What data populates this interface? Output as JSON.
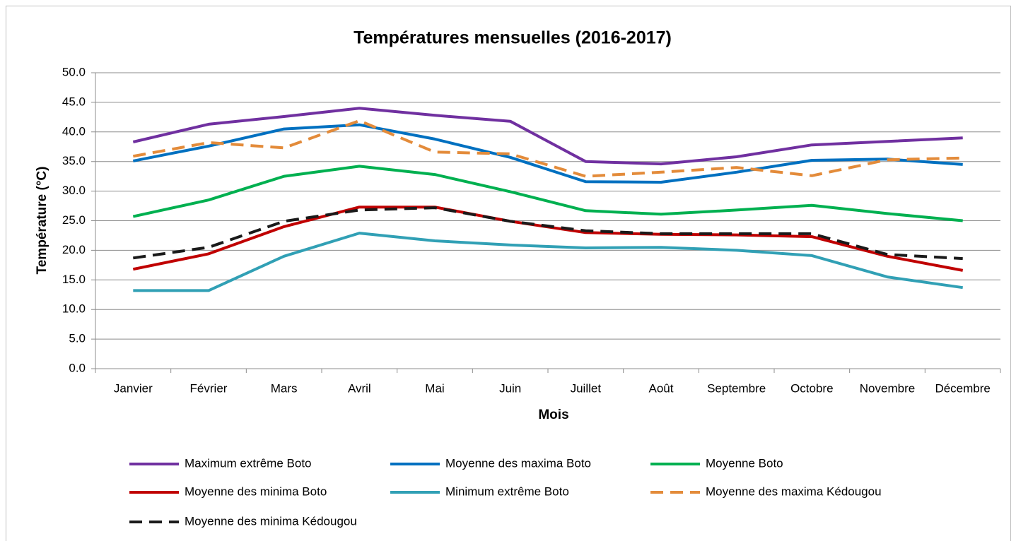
{
  "chart_data": {
    "type": "line",
    "title": "Températures mensuelles (2016-2017)",
    "x_label": "Mois",
    "y_label": "Température (°C)",
    "categories": [
      "Janvier",
      "Février",
      "Mars",
      "Avril",
      "Mai",
      "Juin",
      "Juillet",
      "Août",
      "Septembre",
      "Octobre",
      "Novembre",
      "Décembre"
    ],
    "ylim": [
      0,
      50
    ],
    "yticks": [
      {
        "value": 0,
        "label": "0.0"
      },
      {
        "value": 5,
        "label": "5.0"
      },
      {
        "value": 10,
        "label": "10.0"
      },
      {
        "value": 15,
        "label": "15.0"
      },
      {
        "value": 20,
        "label": "20.0"
      },
      {
        "value": 25,
        "label": "25.0"
      },
      {
        "value": 30,
        "label": "30.0"
      },
      {
        "value": 35,
        "label": "35.0"
      },
      {
        "value": 40,
        "label": "40.0"
      },
      {
        "value": 45,
        "label": "45.0"
      },
      {
        "value": 50,
        "label": "50.0"
      }
    ],
    "grid": true,
    "legend": "bottom",
    "series": [
      {
        "name": "Maximum extrême Boto",
        "color": "#7030a0",
        "dashed": false,
        "values": [
          38.3,
          41.3,
          42.6,
          44.0,
          42.8,
          41.8,
          35.0,
          34.6,
          35.8,
          37.8,
          38.4,
          39.0
        ]
      },
      {
        "name": "Moyenne des maxima Boto",
        "color": "#0070c0",
        "dashed": false,
        "values": [
          35.1,
          37.6,
          40.5,
          41.2,
          38.8,
          35.7,
          31.6,
          31.5,
          33.2,
          35.2,
          35.4,
          34.5
        ]
      },
      {
        "name": "Moyenne Boto",
        "color": "#00b050",
        "dashed": false,
        "values": [
          25.7,
          28.5,
          32.5,
          34.2,
          32.8,
          29.9,
          26.7,
          26.1,
          26.8,
          27.6,
          26.2,
          25.0
        ]
      },
      {
        "name": "Moyenne des minima Boto",
        "color": "#c00000",
        "dashed": false,
        "values": [
          16.8,
          19.4,
          24.0,
          27.3,
          27.3,
          24.9,
          23.0,
          22.7,
          22.6,
          22.3,
          19.0,
          16.6
        ]
      },
      {
        "name": "Minimum extrême Boto",
        "color": "#31a0b5",
        "dashed": false,
        "values": [
          13.2,
          13.2,
          19.0,
          22.9,
          21.6,
          20.9,
          20.4,
          20.5,
          20.0,
          19.1,
          15.5,
          13.7
        ]
      },
      {
        "name": "Moyenne des maxima Kédougou",
        "color": "#e38b3a",
        "dashed": true,
        "values": [
          35.9,
          38.2,
          37.3,
          41.9,
          36.6,
          36.3,
          32.5,
          33.2,
          34.0,
          32.6,
          35.3,
          35.6
        ]
      },
      {
        "name": "Moyenne des minima Kédougou",
        "color": "#1a1a1a",
        "dashed": true,
        "values": [
          18.7,
          20.5,
          24.9,
          26.8,
          27.2,
          24.9,
          23.3,
          22.8,
          22.8,
          22.8,
          19.3,
          18.6
        ]
      }
    ]
  }
}
